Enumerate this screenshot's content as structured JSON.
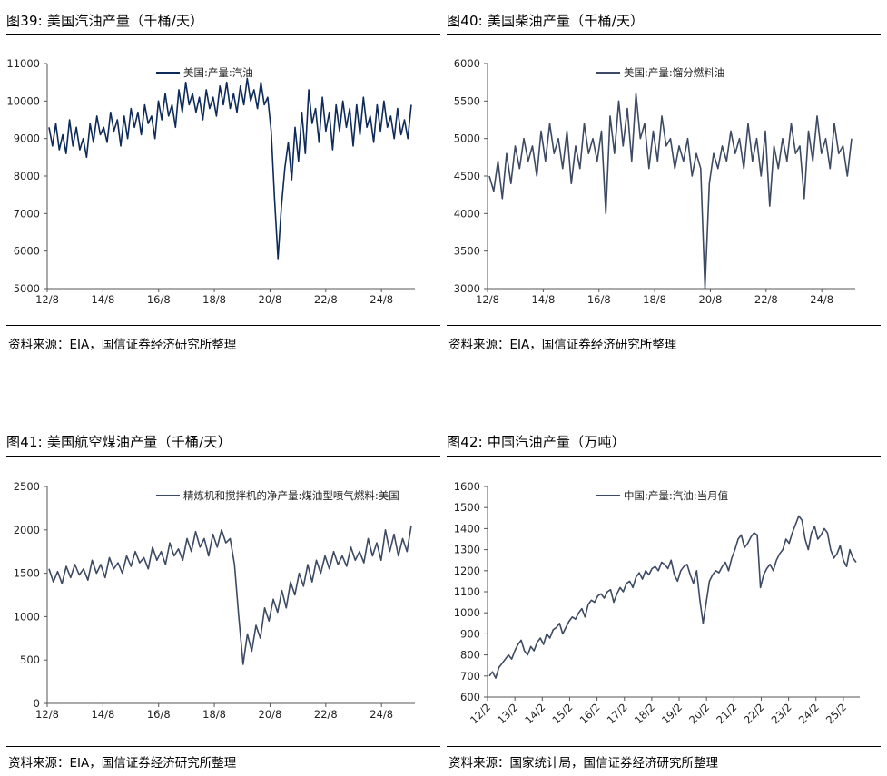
{
  "colors": {
    "navy": "#0e2a5a",
    "slate": "#3d4a63"
  },
  "charts": [
    {
      "title": "图39: 美国汽油产量（千桶/天）",
      "source": "资料来源：EIA，国信证券经济研究所整理",
      "color": "#0e2a5a",
      "chart_data": {
        "type": "line",
        "title": "图39: 美国汽油产量（千桶/天）",
        "series": [
          {
            "name": "美国:产量:汽油",
            "values": [
              9300,
              8800,
              9400,
              8700,
              9100,
              8600,
              9500,
              8800,
              9300,
              8700,
              9000,
              8500,
              9400,
              8900,
              9600,
              9100,
              9300,
              8900,
              9700,
              9200,
              9500,
              8800,
              9600,
              9000,
              9800,
              9300,
              9700,
              9100,
              9900,
              9400,
              9600,
              9000,
              10000,
              9500,
              10200,
              9600,
              9900,
              9300,
              10300,
              9700,
              10500,
              9900,
              10200,
              9700,
              10100,
              9500,
              10300,
              9800,
              10100,
              9600,
              10400,
              9900,
              10500,
              9800,
              10200,
              9700,
              10400,
              9900,
              10600,
              10000,
              10300,
              9800,
              10500,
              9900,
              10100,
              9200,
              7400,
              5800,
              7200,
              8200,
              8900,
              7900,
              9300,
              8400,
              9700,
              8600,
              10300,
              9400,
              9800,
              8900,
              10100,
              9200,
              9700,
              8700,
              9900,
              9200,
              10000,
              9300,
              9800,
              8800,
              9900,
              9100,
              10100,
              9300,
              9600,
              8900,
              9900,
              9200,
              10000,
              9300,
              9600,
              9000,
              9800,
              9100,
              9500,
              9000,
              9900
            ]
          }
        ],
        "x_tick_labels": [
          "12/8",
          "14/8",
          "16/8",
          "18/8",
          "20/8",
          "22/8",
          "24/8"
        ],
        "x_range": [
          2012.583,
          2025.5
        ],
        "ylim": [
          5000,
          11000
        ],
        "y_ticks": [
          5000,
          6000,
          7000,
          8000,
          9000,
          10000,
          11000
        ],
        "legend": "top-center"
      }
    },
    {
      "title": "图40: 美国柴油产量（千桶/天）",
      "source": "资料来源：EIA，国信证券经济研究所整理",
      "color": "#3d4a63",
      "chart_data": {
        "type": "line",
        "title": "图40: 美国柴油产量（千桶/天）",
        "series": [
          {
            "name": "美国:产量:馏分燃料油",
            "values": [
              4500,
              4300,
              4700,
              4200,
              4800,
              4400,
              4900,
              4600,
              5000,
              4700,
              4900,
              4500,
              5100,
              4700,
              5200,
              4800,
              5000,
              4600,
              5100,
              4400,
              4900,
              4600,
              5200,
              4800,
              5000,
              4700,
              5100,
              4000,
              5300,
              4800,
              5500,
              4900,
              5400,
              4700,
              5600,
              5000,
              5200,
              4600,
              5100,
              4700,
              5300,
              4900,
              5000,
              4600,
              4900,
              4700,
              5000,
              4500,
              4800,
              4600,
              3000,
              4400,
              4800,
              4600,
              4900,
              4700,
              5100,
              4800,
              5000,
              4600,
              5200,
              4700,
              5000,
              4500,
              5100,
              4100,
              4900,
              4600,
              5000,
              4700,
              5200,
              4800,
              4900,
              4200,
              5100,
              4700,
              5300,
              4800,
              5000,
              4600,
              5200,
              4800,
              4900,
              4500,
              5000
            ]
          }
        ],
        "x_tick_labels": [
          "12/8",
          "14/8",
          "16/8",
          "18/8",
          "20/8",
          "22/8",
          "24/8"
        ],
        "x_range": [
          2012.583,
          2025.5
        ],
        "ylim": [
          3000,
          6000
        ],
        "y_ticks": [
          3000,
          3500,
          4000,
          4500,
          5000,
          5500,
          6000
        ],
        "legend": "top-center"
      }
    },
    {
      "title": "图41: 美国航空煤油产量（千桶/天）",
      "source": "资料来源：EIA，国信证券经济研究所整理",
      "color": "#3d4a63",
      "chart_data": {
        "type": "line",
        "title": "图41: 美国航空煤油产量（千桶/天）",
        "series": [
          {
            "name": "精炼机和搅拌机的净产量:煤油型喷气燃料:美国",
            "values": [
              1550,
              1400,
              1520,
              1380,
              1580,
              1450,
              1600,
              1480,
              1550,
              1420,
              1650,
              1500,
              1600,
              1450,
              1680,
              1550,
              1620,
              1500,
              1700,
              1580,
              1750,
              1620,
              1680,
              1550,
              1800,
              1650,
              1750,
              1600,
              1850,
              1700,
              1780,
              1650,
              1900,
              1750,
              1980,
              1800,
              1900,
              1700,
              1950,
              1800,
              2000,
              1850,
              1900,
              1600,
              1000,
              450,
              800,
              600,
              900,
              750,
              1100,
              950,
              1200,
              1050,
              1300,
              1100,
              1400,
              1250,
              1500,
              1350,
              1600,
              1400,
              1650,
              1500,
              1700,
              1550,
              1750,
              1600,
              1700,
              1580,
              1800,
              1650,
              1750,
              1620,
              1900,
              1700,
              1850,
              1650,
              2000,
              1750,
              1950,
              1700,
              1900,
              1750,
              2050
            ]
          }
        ],
        "x_tick_labels": [
          "12/8",
          "14/8",
          "16/8",
          "18/8",
          "20/8",
          "22/8",
          "24/8"
        ],
        "x_range": [
          2012.583,
          2025.5
        ],
        "ylim": [
          0,
          2500
        ],
        "y_ticks": [
          0,
          500,
          1000,
          1500,
          2000,
          2500
        ],
        "legend": "top-center"
      }
    },
    {
      "title": "图42: 中国汽油产量（万吨）",
      "source": "资料来源：国家统计局，国信证券经济研究所整理",
      "color": "#3d4a63",
      "chart_data": {
        "type": "line",
        "title": "图42: 中国汽油产量（万吨）",
        "series": [
          {
            "name": "中国:产量:汽油:当月值",
            "values": [
              700,
              720,
              690,
              740,
              760,
              780,
              800,
              780,
              820,
              850,
              870,
              820,
              800,
              840,
              820,
              860,
              880,
              850,
              900,
              880,
              920,
              930,
              950,
              900,
              930,
              960,
              980,
              970,
              1000,
              1020,
              980,
              1040,
              1060,
              1050,
              1080,
              1090,
              1070,
              1100,
              1110,
              1050,
              1090,
              1120,
              1100,
              1140,
              1150,
              1120,
              1170,
              1190,
              1160,
              1200,
              1180,
              1210,
              1220,
              1200,
              1240,
              1230,
              1210,
              1250,
              1180,
              1150,
              1200,
              1220,
              1230,
              1180,
              1140,
              1200,
              1060,
              950,
              1050,
              1150,
              1180,
              1200,
              1190,
              1220,
              1240,
              1200,
              1260,
              1300,
              1350,
              1370,
              1310,
              1330,
              1360,
              1380,
              1370,
              1120,
              1180,
              1210,
              1230,
              1200,
              1250,
              1280,
              1300,
              1350,
              1330,
              1380,
              1420,
              1460,
              1440,
              1350,
              1300,
              1380,
              1410,
              1350,
              1370,
              1400,
              1380,
              1300,
              1260,
              1280,
              1320,
              1250,
              1220,
              1300,
              1260,
              1240
            ]
          }
        ],
        "x_tick_labels": [
          "12/2",
          "13/2",
          "14/2",
          "15/2",
          "16/2",
          "17/2",
          "18/2",
          "19/2",
          "20/2",
          "21/2",
          "22/2",
          "23/2",
          "24/2",
          "25/2"
        ],
        "x_range": [
          2012.083,
          2025.5
        ],
        "ylim": [
          600,
          1600
        ],
        "y_ticks": [
          600,
          700,
          800,
          900,
          1000,
          1100,
          1200,
          1300,
          1400,
          1500,
          1600
        ],
        "legend": "top-center"
      }
    }
  ]
}
